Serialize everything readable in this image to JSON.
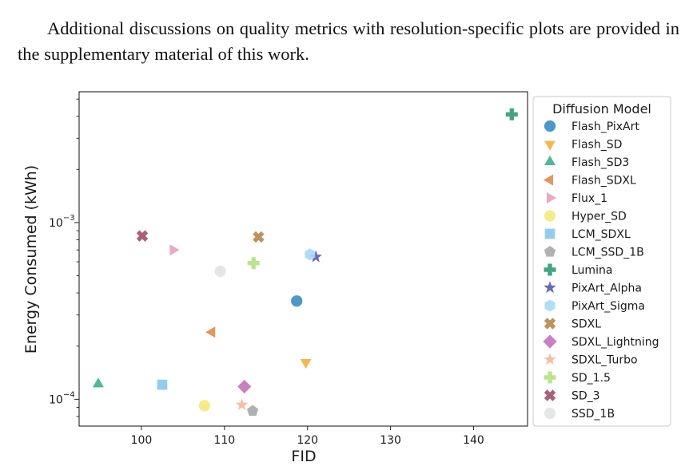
{
  "paragraph": {
    "text": "Additional discussions on quality metrics with resolution-specific plots are provided in the supplementary material of this work."
  },
  "chart_data": {
    "type": "scatter",
    "title": "",
    "xlabel": "FID",
    "ylabel": "Energy Consumed (kWh)",
    "xscale": "linear",
    "yscale": "log",
    "xlim": [
      92.5,
      146.5
    ],
    "ylim": [
      7.05e-05,
      0.0055
    ],
    "xticks": [
      100,
      110,
      120,
      130,
      140
    ],
    "yticks": [
      {
        "value": 0.0001,
        "base": "10",
        "exp": "−4"
      },
      {
        "value": 0.001,
        "base": "10",
        "exp": "−3"
      }
    ],
    "grid": false,
    "legend": {
      "title": "Diffusion Model",
      "position": "right-outside"
    },
    "series": [
      {
        "name": "Flash_PixArt",
        "marker": "circle",
        "color": "#3a8cc4",
        "x": 118.7,
        "y": 0.00036
      },
      {
        "name": "Flash_SD",
        "marker": "triangle-down",
        "color": "#eeb23f",
        "x": 119.8,
        "y": 0.000162
      },
      {
        "name": "Flash_SD3",
        "marker": "triangle-up",
        "color": "#3ab18a",
        "x": 94.8,
        "y": 0.000122
      },
      {
        "name": "Flash_SDXL",
        "marker": "triangle-left",
        "color": "#e08a4c",
        "x": 108.5,
        "y": 0.00024
      },
      {
        "name": "Flux_1",
        "marker": "triangle-right",
        "color": "#e2a2be",
        "x": 103.8,
        "y": 0.0007
      },
      {
        "name": "Hyper_SD",
        "marker": "circle",
        "color": "#f2ea7c",
        "x": 107.6,
        "y": 9.2e-05
      },
      {
        "name": "LCM_SDXL",
        "marker": "square",
        "color": "#86c8ee",
        "x": 102.5,
        "y": 0.000121
      },
      {
        "name": "LCM_SSD_1B",
        "marker": "pentagon",
        "color": "#a8a8a8",
        "x": 113.4,
        "y": 8.6e-05
      },
      {
        "name": "Lumina",
        "marker": "plus",
        "color": "#2f9a72",
        "x": 144.6,
        "y": 0.0041
      },
      {
        "name": "PixArt_Alpha",
        "marker": "star",
        "color": "#5a5aad",
        "x": 121.0,
        "y": 0.00064
      },
      {
        "name": "PixArt_Sigma",
        "marker": "hexagon",
        "color": "#a9d8f4",
        "x": 120.3,
        "y": 0.00066
      },
      {
        "name": "SDXL",
        "marker": "x",
        "color": "#b7864e",
        "x": 114.1,
        "y": 0.00083
      },
      {
        "name": "SDXL_Lightning",
        "marker": "diamond",
        "color": "#c573b9",
        "x": 112.4,
        "y": 0.000118
      },
      {
        "name": "SDXL_Turbo",
        "marker": "star",
        "color": "#f0b9a2",
        "x": 112.1,
        "y": 9.3e-05
      },
      {
        "name": "SD_1.5",
        "marker": "plus",
        "color": "#b5e082",
        "x": 113.5,
        "y": 0.00059
      },
      {
        "name": "SD_3",
        "marker": "x",
        "color": "#a14f6c",
        "x": 100.1,
        "y": 0.00084
      },
      {
        "name": "SSD_1B",
        "marker": "circle",
        "color": "#e3e3e3",
        "x": 109.5,
        "y": 0.00053
      }
    ]
  }
}
